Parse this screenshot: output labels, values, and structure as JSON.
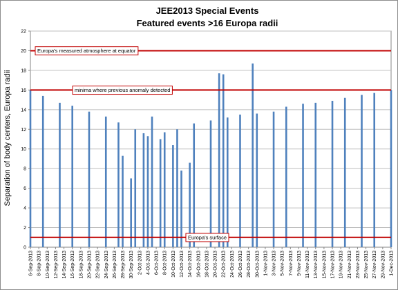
{
  "chart_data": {
    "type": "bar",
    "title_lines": [
      "JEE2013 Special Events",
      "Featured events >16 Europa radii"
    ],
    "xlabel": "",
    "ylabel": "Separation of body centers, Europa radii",
    "ylim": [
      0,
      22
    ],
    "yticks": [
      0,
      2,
      4,
      6,
      8,
      10,
      12,
      14,
      16,
      18,
      20,
      22
    ],
    "grid": true,
    "x_tick_labels": [
      "6-Sep-2013",
      "8-Sep-2013",
      "10-Sep-2013",
      "12-Sep-2013",
      "14-Sep-2013",
      "16-Sep-2013",
      "18-Sep-2013",
      "20-Sep-2013",
      "22-Sep-2013",
      "24-Sep-2013",
      "26-Sep-2013",
      "28-Sep-2013",
      "30-Sep-2013",
      "2-Oct-2013",
      "4-Oct-2013",
      "6-Oct-2013",
      "8-Oct-2013",
      "10-Oct-2013",
      "12-Oct-2013",
      "14-Oct-2013",
      "16-Oct-2013",
      "18-Oct-2013",
      "20-Oct-2013",
      "22-Oct-2013",
      "24-Oct-2013",
      "26-Oct-2013",
      "28-Oct-2013",
      "30-Oct-2013",
      "1-Nov-2013",
      "3-Nov-2013",
      "5-Nov-2013",
      "7-Nov-2013",
      "9-Nov-2013",
      "11-Nov-2013",
      "13-Nov-2013",
      "15-Nov-2013",
      "17-Nov-2013",
      "19-Nov-2013",
      "21-Nov-2013",
      "23-Nov-2013",
      "25-Nov-2013",
      "27-Nov-2013",
      "29-Nov-2013",
      "1-Dec-2013"
    ],
    "x_start": "2013-09-06",
    "x_end": "2013-12-01",
    "points": [
      {
        "x": "2013-09-06",
        "y": 16.0
      },
      {
        "x": "2013-09-09",
        "y": 15.4
      },
      {
        "x": "2013-09-13",
        "y": 14.7
      },
      {
        "x": "2013-09-16",
        "y": 14.4
      },
      {
        "x": "2013-09-20",
        "y": 13.8
      },
      {
        "x": "2013-09-24",
        "y": 13.3
      },
      {
        "x": "2013-09-27",
        "y": 12.7
      },
      {
        "x": "2013-09-28",
        "y": 9.3
      },
      {
        "x": "2013-09-30",
        "y": 7.0
      },
      {
        "x": "2013-10-01",
        "y": 12.0
      },
      {
        "x": "2013-10-03",
        "y": 11.6
      },
      {
        "x": "2013-10-04",
        "y": 11.3
      },
      {
        "x": "2013-10-05",
        "y": 13.3
      },
      {
        "x": "2013-10-07",
        "y": 11.0
      },
      {
        "x": "2013-10-08",
        "y": 11.7
      },
      {
        "x": "2013-10-10",
        "y": 10.4
      },
      {
        "x": "2013-10-11",
        "y": 12.0
      },
      {
        "x": "2013-10-12",
        "y": 7.8
      },
      {
        "x": "2013-10-14",
        "y": 8.6
      },
      {
        "x": "2013-10-15",
        "y": 12.6
      },
      {
        "x": "2013-10-19",
        "y": 12.9
      },
      {
        "x": "2013-10-21",
        "y": 17.7
      },
      {
        "x": "2013-10-22",
        "y": 17.6
      },
      {
        "x": "2013-10-23",
        "y": 13.2
      },
      {
        "x": "2013-10-26",
        "y": 13.5
      },
      {
        "x": "2013-10-29",
        "y": 18.7
      },
      {
        "x": "2013-10-30",
        "y": 13.6
      },
      {
        "x": "2013-11-03",
        "y": 13.8
      },
      {
        "x": "2013-11-06",
        "y": 14.3
      },
      {
        "x": "2013-11-10",
        "y": 14.6
      },
      {
        "x": "2013-11-13",
        "y": 14.7
      },
      {
        "x": "2013-11-17",
        "y": 14.9
      },
      {
        "x": "2013-11-20",
        "y": 15.2
      },
      {
        "x": "2013-11-24",
        "y": 15.5
      },
      {
        "x": "2013-11-27",
        "y": 15.7
      },
      {
        "x": "2013-12-01",
        "y": 16.0
      }
    ],
    "reference_lines": [
      {
        "y": 20,
        "label": "Europa's measured atmosphere at equator",
        "color": "#c00000",
        "label_position": "left"
      },
      {
        "y": 16,
        "label": "minima where previous anomaly detected",
        "color": "#c00000",
        "label_position": "left-center"
      },
      {
        "y": 1,
        "label": "Europa's surface",
        "color": "#c00000",
        "label_position": "center"
      }
    ],
    "colors": {
      "bar": "#4f81bd",
      "reference_line": "#c00000",
      "grid": "#bfbfbf",
      "axis": "#868686"
    }
  }
}
